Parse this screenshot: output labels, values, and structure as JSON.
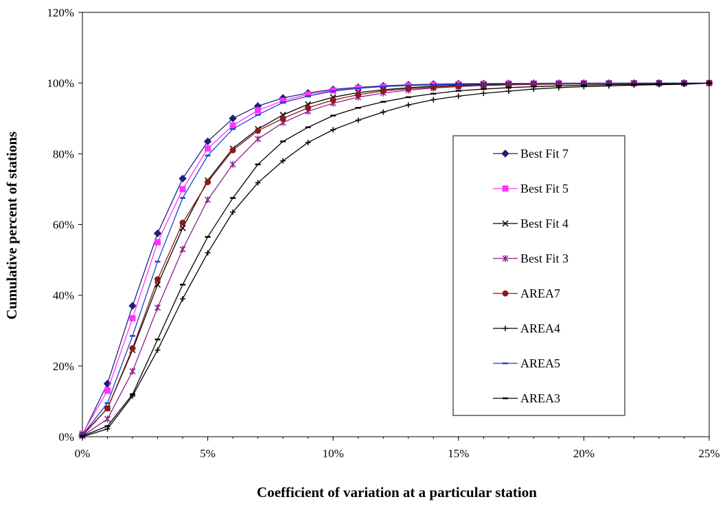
{
  "chart_data": {
    "type": "line",
    "xlabel": "Coefficient of variation at a particular station",
    "ylabel": "Cumulative percent of stations",
    "xlim": [
      0,
      25
    ],
    "ylim": [
      0,
      120
    ],
    "x_ticks": [
      "0%",
      "5%",
      "10%",
      "15%",
      "20%",
      "25%"
    ],
    "y_ticks": [
      "0%",
      "20%",
      "40%",
      "60%",
      "80%",
      "100%",
      "120%"
    ],
    "x_unit": "%",
    "y_unit": "%",
    "grid": false,
    "legend_position": "right",
    "x": [
      0,
      1,
      2,
      3,
      4,
      5,
      6,
      7,
      8,
      9,
      10,
      11,
      12,
      13,
      14,
      15,
      16,
      17,
      18,
      19,
      20,
      21,
      22,
      23,
      24,
      25
    ],
    "series": [
      {
        "name": "Best Fit 7",
        "color": "#1f1f7a",
        "marker": "diamond",
        "values": [
          0.5,
          15,
          37,
          57.5,
          73,
          83.5,
          90,
          93.5,
          95.8,
          97.2,
          98.2,
          98.8,
          99.2,
          99.5,
          99.7,
          99.8,
          99.85,
          99.9,
          99.93,
          99.95,
          99.96,
          99.97,
          99.98,
          99.99,
          99.99,
          100
        ]
      },
      {
        "name": "Best Fit 5",
        "color": "#ff33ff",
        "marker": "square",
        "values": [
          0.8,
          13,
          33.5,
          55,
          70,
          81.5,
          88,
          92.3,
          95,
          96.8,
          97.9,
          98.6,
          99,
          99.3,
          99.5,
          99.65,
          99.75,
          99.82,
          99.87,
          99.9,
          99.93,
          99.95,
          99.96,
          99.97,
          99.98,
          100
        ]
      },
      {
        "name": "Best Fit 4",
        "color": "#000000",
        "marker": "x",
        "values": [
          0.3,
          8,
          24.5,
          43,
          59,
          72.5,
          81.5,
          87,
          91,
          94,
          96,
          97.3,
          98.1,
          98.7,
          99.1,
          99.4,
          99.6,
          99.7,
          99.8,
          99.85,
          99.9,
          99.93,
          99.95,
          99.97,
          99.98,
          100
        ]
      },
      {
        "name": "Best Fit 3",
        "color": "#8b1f8b",
        "marker": "star",
        "values": [
          0.2,
          5,
          18.5,
          36.5,
          53,
          67,
          77,
          84.2,
          88.8,
          92,
          94.3,
          96,
          97.2,
          98,
          98.6,
          99,
          99.3,
          99.5,
          99.65,
          99.75,
          99.82,
          99.87,
          99.9,
          99.93,
          99.95,
          100
        ]
      },
      {
        "name": "AREA7",
        "color": "#8b1a1a",
        "marker": "circle",
        "values": [
          0.5,
          8,
          25,
          44.5,
          60.5,
          72,
          81,
          86.5,
          90,
          93,
          95.2,
          96.7,
          97.8,
          98.4,
          98.8,
          99.1,
          99.35,
          99.5,
          99.6,
          99.7,
          99.78,
          99.85,
          99.9,
          99.93,
          99.95,
          100
        ]
      },
      {
        "name": "AREA4",
        "color": "#000000",
        "marker": "plus",
        "values": [
          0,
          2.2,
          11.5,
          24.5,
          39,
          52,
          63.5,
          71.8,
          78,
          83.2,
          86.8,
          89.5,
          91.8,
          93.8,
          95.3,
          96.3,
          97.1,
          97.7,
          98.3,
          98.7,
          99,
          99.2,
          99.4,
          99.55,
          99.65,
          100
        ]
      },
      {
        "name": "AREA5",
        "color": "#1f3fcc",
        "marker": "dash",
        "values": [
          0.5,
          9.5,
          28.5,
          49.5,
          67.5,
          79.5,
          87,
          91,
          94.5,
          96.3,
          97.7,
          98.5,
          99,
          99.3,
          99.5,
          99.65,
          99.75,
          99.82,
          99.87,
          99.9,
          99.93,
          99.95,
          99.96,
          99.97,
          99.98,
          100
        ]
      },
      {
        "name": "AREA3",
        "color": "#000000",
        "marker": "dash",
        "values": [
          0.2,
          3,
          12,
          27.5,
          43,
          56.5,
          67.5,
          77,
          83.5,
          87.5,
          90.8,
          93,
          94.7,
          96,
          97,
          97.8,
          98.3,
          98.7,
          99,
          99.2,
          99.4,
          99.55,
          99.65,
          99.75,
          99.82,
          100
        ]
      }
    ]
  }
}
